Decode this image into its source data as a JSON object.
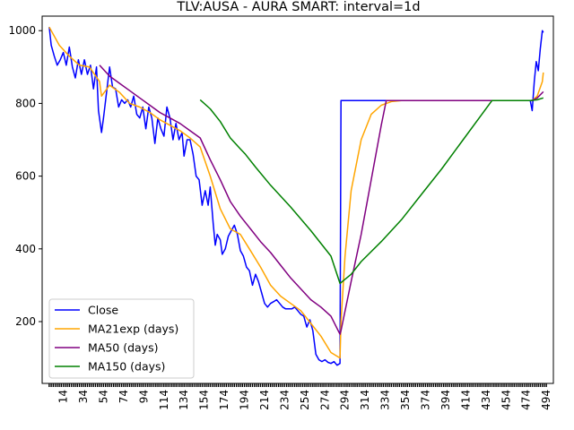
{
  "chart_data": {
    "type": "line",
    "title": "TLV:AUSA - AURA SMART: interval=1d",
    "xlabel": "",
    "ylabel": "",
    "xlim": [
      -7,
      501
    ],
    "ylim": [
      30,
      1040
    ],
    "grid": false,
    "legend_position": "lower-left",
    "yticks": [
      200,
      400,
      600,
      800,
      1000
    ],
    "xticks": [
      14,
      34,
      54,
      74,
      94,
      114,
      134,
      154,
      174,
      194,
      214,
      234,
      254,
      274,
      294,
      314,
      334,
      354,
      374,
      394,
      414,
      434,
      454,
      474,
      494
    ],
    "series": [
      {
        "name": "Close",
        "color": "#0000ff",
        "points": [
          [
            0,
            1010
          ],
          [
            2,
            960
          ],
          [
            5,
            930
          ],
          [
            8,
            905
          ],
          [
            11,
            920
          ],
          [
            14,
            940
          ],
          [
            17,
            905
          ],
          [
            20,
            955
          ],
          [
            23,
            900
          ],
          [
            26,
            870
          ],
          [
            29,
            920
          ],
          [
            32,
            880
          ],
          [
            35,
            920
          ],
          [
            38,
            880
          ],
          [
            41,
            905
          ],
          [
            44,
            840
          ],
          [
            47,
            900
          ],
          [
            49,
            780
          ],
          [
            52,
            720
          ],
          [
            54,
            760
          ],
          [
            57,
            830
          ],
          [
            60,
            900
          ],
          [
            63,
            845
          ],
          [
            66,
            840
          ],
          [
            69,
            790
          ],
          [
            72,
            810
          ],
          [
            75,
            800
          ],
          [
            78,
            810
          ],
          [
            81,
            790
          ],
          [
            84,
            820
          ],
          [
            87,
            770
          ],
          [
            90,
            760
          ],
          [
            93,
            790
          ],
          [
            96,
            730
          ],
          [
            99,
            790
          ],
          [
            102,
            760
          ],
          [
            105,
            690
          ],
          [
            108,
            760
          ],
          [
            111,
            730
          ],
          [
            114,
            710
          ],
          [
            117,
            790
          ],
          [
            120,
            760
          ],
          [
            123,
            700
          ],
          [
            126,
            745
          ],
          [
            129,
            700
          ],
          [
            132,
            720
          ],
          [
            134,
            655
          ],
          [
            137,
            700
          ],
          [
            140,
            700
          ],
          [
            143,
            660
          ],
          [
            146,
            600
          ],
          [
            149,
            590
          ],
          [
            152,
            520
          ],
          [
            155,
            560
          ],
          [
            158,
            520
          ],
          [
            160,
            570
          ],
          [
            163,
            470
          ],
          [
            165,
            410
          ],
          [
            167,
            440
          ],
          [
            170,
            425
          ],
          [
            172,
            385
          ],
          [
            175,
            400
          ],
          [
            178,
            435
          ],
          [
            181,
            450
          ],
          [
            184,
            465
          ],
          [
            187,
            440
          ],
          [
            190,
            395
          ],
          [
            193,
            380
          ],
          [
            196,
            350
          ],
          [
            199,
            340
          ],
          [
            202,
            300
          ],
          [
            205,
            330
          ],
          [
            208,
            310
          ],
          [
            211,
            280
          ],
          [
            214,
            250
          ],
          [
            217,
            240
          ],
          [
            220,
            250
          ],
          [
            223,
            255
          ],
          [
            226,
            260
          ],
          [
            229,
            250
          ],
          [
            232,
            240
          ],
          [
            235,
            235
          ],
          [
            238,
            235
          ],
          [
            241,
            235
          ],
          [
            244,
            240
          ],
          [
            247,
            230
          ],
          [
            250,
            220
          ],
          [
            253,
            215
          ],
          [
            256,
            185
          ],
          [
            259,
            205
          ],
          [
            262,
            175
          ],
          [
            265,
            110
          ],
          [
            268,
            95
          ],
          [
            271,
            90
          ],
          [
            274,
            95
          ],
          [
            277,
            88
          ],
          [
            280,
            85
          ],
          [
            283,
            90
          ],
          [
            286,
            80
          ],
          [
            289,
            85
          ],
          [
            290,
            808
          ],
          [
            478,
            808
          ],
          [
            480,
            780
          ],
          [
            482,
            860
          ],
          [
            484,
            915
          ],
          [
            486,
            890
          ],
          [
            488,
            950
          ],
          [
            490,
            1000
          ],
          [
            491,
            995
          ]
        ]
      },
      {
        "name": "MA21exp (days)",
        "color": "#ffa500",
        "points": [
          [
            0,
            1010
          ],
          [
            10,
            960
          ],
          [
            20,
            930
          ],
          [
            30,
            905
          ],
          [
            40,
            900
          ],
          [
            50,
            860
          ],
          [
            52,
            820
          ],
          [
            60,
            850
          ],
          [
            70,
            830
          ],
          [
            80,
            800
          ],
          [
            90,
            790
          ],
          [
            100,
            775
          ],
          [
            110,
            755
          ],
          [
            120,
            740
          ],
          [
            130,
            725
          ],
          [
            140,
            705
          ],
          [
            150,
            680
          ],
          [
            160,
            600
          ],
          [
            170,
            510
          ],
          [
            180,
            455
          ],
          [
            190,
            440
          ],
          [
            200,
            395
          ],
          [
            210,
            350
          ],
          [
            220,
            300
          ],
          [
            230,
            270
          ],
          [
            240,
            250
          ],
          [
            250,
            230
          ],
          [
            260,
            195
          ],
          [
            270,
            160
          ],
          [
            280,
            115
          ],
          [
            289,
            100
          ],
          [
            290,
            200
          ],
          [
            294,
            380
          ],
          [
            300,
            560
          ],
          [
            310,
            700
          ],
          [
            320,
            770
          ],
          [
            330,
            795
          ],
          [
            340,
            805
          ],
          [
            350,
            808
          ],
          [
            480,
            808
          ],
          [
            485,
            820
          ],
          [
            490,
            860
          ],
          [
            491,
            885
          ]
        ]
      },
      {
        "name": "MA50 (days)",
        "color": "#800080",
        "points": [
          [
            50,
            905
          ],
          [
            60,
            875
          ],
          [
            70,
            855
          ],
          [
            80,
            835
          ],
          [
            90,
            815
          ],
          [
            100,
            795
          ],
          [
            110,
            775
          ],
          [
            120,
            760
          ],
          [
            130,
            745
          ],
          [
            140,
            725
          ],
          [
            150,
            705
          ],
          [
            160,
            645
          ],
          [
            170,
            590
          ],
          [
            180,
            530
          ],
          [
            190,
            490
          ],
          [
            200,
            455
          ],
          [
            210,
            420
          ],
          [
            220,
            390
          ],
          [
            230,
            355
          ],
          [
            240,
            320
          ],
          [
            250,
            290
          ],
          [
            260,
            260
          ],
          [
            270,
            240
          ],
          [
            280,
            215
          ],
          [
            289,
            165
          ],
          [
            290,
            175
          ],
          [
            300,
            310
          ],
          [
            310,
            440
          ],
          [
            320,
            590
          ],
          [
            330,
            740
          ],
          [
            335,
            808
          ],
          [
            480,
            808
          ],
          [
            485,
            815
          ],
          [
            491,
            832
          ]
        ]
      },
      {
        "name": "MA150 (days)",
        "color": "#008000",
        "points": [
          [
            150,
            810
          ],
          [
            160,
            785
          ],
          [
            170,
            750
          ],
          [
            180,
            705
          ],
          [
            190,
            675
          ],
          [
            195,
            660
          ],
          [
            205,
            625
          ],
          [
            220,
            575
          ],
          [
            240,
            515
          ],
          [
            260,
            450
          ],
          [
            280,
            380
          ],
          [
            289,
            305
          ],
          [
            300,
            330
          ],
          [
            310,
            365
          ],
          [
            330,
            420
          ],
          [
            350,
            480
          ],
          [
            370,
            550
          ],
          [
            390,
            620
          ],
          [
            410,
            695
          ],
          [
            430,
            770
          ],
          [
            440,
            808
          ],
          [
            478,
            808
          ],
          [
            485,
            810
          ],
          [
            491,
            815
          ]
        ]
      }
    ]
  }
}
